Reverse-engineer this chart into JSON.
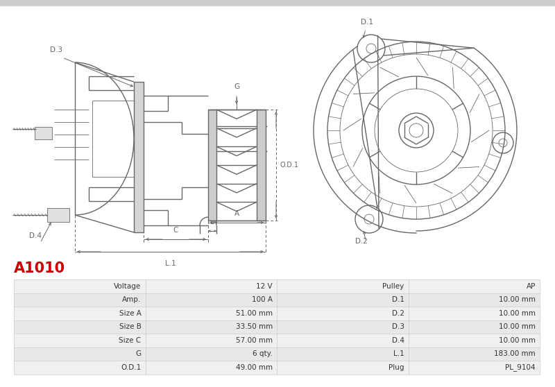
{
  "title": "A1010",
  "title_color": "#cc0000",
  "bg_color": "#ffffff",
  "table_data": [
    [
      "Voltage",
      "12 V",
      "Pulley",
      "AP"
    ],
    [
      "Amp.",
      "100 A",
      "D.1",
      "10.00 mm"
    ],
    [
      "Size A",
      "51.00 mm",
      "D.2",
      "10.00 mm"
    ],
    [
      "Size B",
      "33.50 mm",
      "D.3",
      "10.00 mm"
    ],
    [
      "Size C",
      "57.00 mm",
      "D.4",
      "10.00 mm"
    ],
    [
      "G",
      "6 qty.",
      "L.1",
      "183.00 mm"
    ],
    [
      "O.D.1",
      "49.00 mm",
      "Plug",
      "PL_9104"
    ]
  ],
  "line_color": "#666666",
  "dim_color": "#666666",
  "table_row_bg1": "#f0f0f0",
  "table_row_bg2": "#e8e8e8",
  "table_border_color": "#cccccc"
}
